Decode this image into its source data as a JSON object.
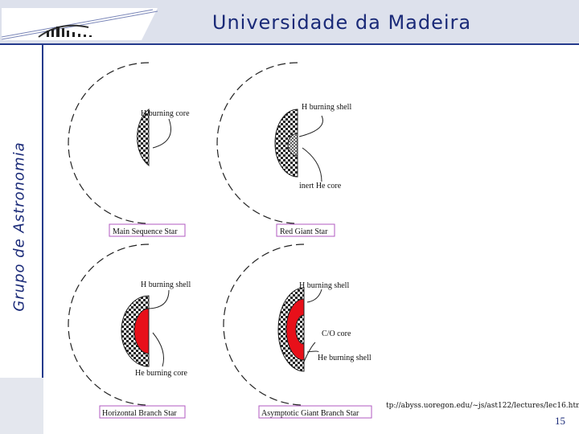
{
  "header": {
    "title": "Universidade da Madeira"
  },
  "sidebar": {
    "label": "Grupo de Astronomia"
  },
  "diagram": {
    "panels": [
      {
        "caption": "Main Sequence Star",
        "labels": [
          "H burning core"
        ]
      },
      {
        "caption": "Red Giant Star",
        "labels": [
          "H burning shell",
          "inert He core"
        ]
      },
      {
        "caption": "Horizontal Branch Star",
        "labels": [
          "H burning shell",
          "He burning core"
        ]
      },
      {
        "caption": "Asymptotic Giant Branch Star",
        "labels": [
          "H burning shell",
          "C/O core",
          "He burning shell"
        ]
      }
    ],
    "colors": {
      "he_burning": "#e8101a",
      "outline": "#222222"
    }
  },
  "footer": {
    "source_url": "tp://abyss.uoregon.edu/~js/ast122/lectures/lec16.html",
    "page_number": "15"
  },
  "icons": {
    "logo": "university-logo"
  }
}
